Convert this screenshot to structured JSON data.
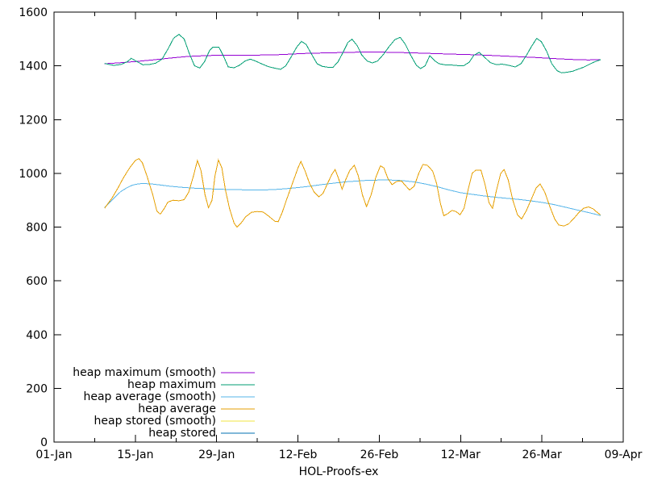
{
  "figure": {
    "background": "#ffffff",
    "foreground": "#000000"
  },
  "chart_data": {
    "type": "line",
    "title": "",
    "xlabel": "HOL-Proofs-ex",
    "ylabel": "",
    "grid": false,
    "legend_position": "inside bottom-left, text right-aligned with line sample at right",
    "ylim": [
      0,
      1600
    ],
    "y_ticks": [
      0,
      200,
      400,
      600,
      800,
      1000,
      1200,
      1400,
      1600
    ],
    "xlim_days": [
      0,
      98
    ],
    "x_tick_days": [
      0,
      14,
      28,
      42,
      56,
      70,
      84,
      98
    ],
    "x_tick_labels": [
      "01-Jan",
      "15-Jan",
      "29-Jan",
      "12-Feb",
      "26-Feb",
      "12-Mar",
      "26-Mar",
      "09-Apr"
    ],
    "x_minor_tick_days": [
      7,
      21,
      35,
      49,
      63,
      77,
      91
    ],
    "series": [
      {
        "name": "heap maximum (smooth)",
        "color": "#9400d3",
        "points": [
          [
            8.7,
            1408
          ],
          [
            11,
            1411
          ],
          [
            14,
            1416
          ],
          [
            17,
            1422
          ],
          [
            20,
            1429
          ],
          [
            23,
            1435
          ],
          [
            26,
            1438
          ],
          [
            29,
            1440
          ],
          [
            32,
            1440
          ],
          [
            35,
            1440
          ],
          [
            38,
            1441
          ],
          [
            41,
            1444
          ],
          [
            44,
            1447
          ],
          [
            47,
            1448
          ],
          [
            50,
            1450
          ],
          [
            53,
            1451
          ],
          [
            56,
            1451
          ],
          [
            59,
            1450
          ],
          [
            62,
            1448
          ],
          [
            65,
            1446
          ],
          [
            68,
            1444
          ],
          [
            71,
            1442
          ],
          [
            74,
            1440
          ],
          [
            77,
            1437
          ],
          [
            80,
            1434
          ],
          [
            83,
            1431
          ],
          [
            86,
            1427
          ],
          [
            88,
            1425
          ],
          [
            90,
            1423
          ],
          [
            92,
            1422
          ],
          [
            94.1,
            1423
          ]
        ]
      },
      {
        "name": "heap maximum",
        "color": "#009e73",
        "points": [
          [
            8.7,
            1409
          ],
          [
            9.5,
            1405
          ],
          [
            10.3,
            1402
          ],
          [
            11.5,
            1405
          ],
          [
            12.6,
            1415
          ],
          [
            13.3,
            1428
          ],
          [
            14.2,
            1417
          ],
          [
            15.3,
            1404
          ],
          [
            16.4,
            1405
          ],
          [
            17.5,
            1410
          ],
          [
            18.6,
            1425
          ],
          [
            19.6,
            1462
          ],
          [
            20.6,
            1503
          ],
          [
            21.5,
            1517
          ],
          [
            22.4,
            1500
          ],
          [
            23.3,
            1445
          ],
          [
            24.2,
            1400
          ],
          [
            25.1,
            1392
          ],
          [
            25.9,
            1415
          ],
          [
            26.8,
            1458
          ],
          [
            27.4,
            1470
          ],
          [
            28.4,
            1469
          ],
          [
            29.2,
            1435
          ],
          [
            30,
            1396
          ],
          [
            31,
            1393
          ],
          [
            31.9,
            1402
          ],
          [
            32.9,
            1418
          ],
          [
            33.8,
            1425
          ],
          [
            34.8,
            1417
          ],
          [
            35.8,
            1407
          ],
          [
            36.9,
            1397
          ],
          [
            37.9,
            1392
          ],
          [
            39,
            1387
          ],
          [
            39.9,
            1400
          ],
          [
            40.8,
            1432
          ],
          [
            41.8,
            1470
          ],
          [
            42.6,
            1491
          ],
          [
            43.4,
            1480
          ],
          [
            44.3,
            1445
          ],
          [
            45.3,
            1408
          ],
          [
            46.2,
            1398
          ],
          [
            47.1,
            1395
          ],
          [
            48,
            1394
          ],
          [
            48.9,
            1415
          ],
          [
            49.8,
            1452
          ],
          [
            50.6,
            1487
          ],
          [
            51.3,
            1499
          ],
          [
            52.2,
            1475
          ],
          [
            53,
            1440
          ],
          [
            53.9,
            1418
          ],
          [
            54.8,
            1411
          ],
          [
            55.7,
            1418
          ],
          [
            56.7,
            1442
          ],
          [
            57.7,
            1472
          ],
          [
            58.7,
            1498
          ],
          [
            59.6,
            1506
          ],
          [
            60.5,
            1480
          ],
          [
            61.4,
            1440
          ],
          [
            62.4,
            1402
          ],
          [
            63.1,
            1390
          ],
          [
            63.9,
            1400
          ],
          [
            64.7,
            1438
          ],
          [
            65.6,
            1418
          ],
          [
            66.3,
            1408
          ],
          [
            67.3,
            1404
          ],
          [
            68.4,
            1403
          ],
          [
            69.5,
            1401
          ],
          [
            70.5,
            1400
          ],
          [
            71.5,
            1414
          ],
          [
            72.3,
            1440
          ],
          [
            73.2,
            1450
          ],
          [
            74,
            1435
          ],
          [
            75.1,
            1412
          ],
          [
            76.1,
            1405
          ],
          [
            77.2,
            1406
          ],
          [
            78.3,
            1402
          ],
          [
            79.4,
            1396
          ],
          [
            80.4,
            1408
          ],
          [
            81.3,
            1438
          ],
          [
            82.2,
            1472
          ],
          [
            83.1,
            1502
          ],
          [
            83.9,
            1490
          ],
          [
            84.8,
            1455
          ],
          [
            85.7,
            1408
          ],
          [
            86.6,
            1382
          ],
          [
            87.4,
            1374
          ],
          [
            88.3,
            1376
          ],
          [
            89.3,
            1380
          ],
          [
            90.3,
            1388
          ],
          [
            91.2,
            1395
          ],
          [
            92.2,
            1406
          ],
          [
            93.1,
            1415
          ],
          [
            94.1,
            1423
          ]
        ]
      },
      {
        "name": "heap average (smooth)",
        "color": "#56b4e9",
        "points": [
          [
            8.7,
            872
          ],
          [
            9.5,
            890
          ],
          [
            10.5,
            912
          ],
          [
            11.5,
            932
          ],
          [
            12.5,
            946
          ],
          [
            13.5,
            956
          ],
          [
            14.5,
            961
          ],
          [
            15.5,
            962
          ],
          [
            17,
            960
          ],
          [
            18.5,
            956
          ],
          [
            20,
            952
          ],
          [
            22,
            948
          ],
          [
            24,
            945
          ],
          [
            26,
            943
          ],
          [
            28,
            941
          ],
          [
            30,
            940
          ],
          [
            32,
            939
          ],
          [
            34,
            938
          ],
          [
            36,
            938
          ],
          [
            38,
            940
          ],
          [
            40,
            943
          ],
          [
            42,
            947
          ],
          [
            44,
            952
          ],
          [
            46,
            958
          ],
          [
            48,
            963
          ],
          [
            50,
            968
          ],
          [
            52,
            971
          ],
          [
            54,
            974
          ],
          [
            56,
            975
          ],
          [
            58,
            975
          ],
          [
            60,
            973
          ],
          [
            62,
            968
          ],
          [
            64,
            960
          ],
          [
            66,
            950
          ],
          [
            68,
            938
          ],
          [
            70,
            928
          ],
          [
            72,
            922
          ],
          [
            74,
            916
          ],
          [
            76,
            911
          ],
          [
            78,
            907
          ],
          [
            80,
            903
          ],
          [
            82,
            898
          ],
          [
            84,
            892
          ],
          [
            86,
            884
          ],
          [
            88,
            874
          ],
          [
            90,
            864
          ],
          [
            92,
            854
          ],
          [
            93,
            849
          ],
          [
            94.1,
            843
          ]
        ]
      },
      {
        "name": "heap average",
        "color": "#e69f00",
        "points": [
          [
            8.7,
            870
          ],
          [
            9.3,
            888
          ],
          [
            10,
            908
          ],
          [
            11,
            945
          ],
          [
            12,
            985
          ],
          [
            13,
            1020
          ],
          [
            14,
            1048
          ],
          [
            14.6,
            1055
          ],
          [
            15.2,
            1040
          ],
          [
            16,
            990
          ],
          [
            17,
            920
          ],
          [
            17.7,
            860
          ],
          [
            18.3,
            848
          ],
          [
            19,
            870
          ],
          [
            19.6,
            893
          ],
          [
            20.5,
            900
          ],
          [
            21.5,
            898
          ],
          [
            22.4,
            902
          ],
          [
            23.2,
            930
          ],
          [
            24,
            990
          ],
          [
            24.7,
            1048
          ],
          [
            25.3,
            1010
          ],
          [
            26,
            920
          ],
          [
            26.6,
            872
          ],
          [
            27.2,
            900
          ],
          [
            27.7,
            990
          ],
          [
            28.3,
            1050
          ],
          [
            28.9,
            1020
          ],
          [
            29.5,
            940
          ],
          [
            30.2,
            870
          ],
          [
            31,
            815
          ],
          [
            31.5,
            800
          ],
          [
            32.2,
            815
          ],
          [
            33,
            838
          ],
          [
            34,
            855
          ],
          [
            35,
            858
          ],
          [
            36,
            856
          ],
          [
            37,
            840
          ],
          [
            38,
            822
          ],
          [
            38.6,
            820
          ],
          [
            39.3,
            855
          ],
          [
            40,
            900
          ],
          [
            41,
            960
          ],
          [
            42,
            1020
          ],
          [
            42.5,
            1044
          ],
          [
            43.2,
            1010
          ],
          [
            44,
            962
          ],
          [
            44.8,
            930
          ],
          [
            45.6,
            913
          ],
          [
            46.3,
            925
          ],
          [
            47,
            958
          ],
          [
            47.8,
            995
          ],
          [
            48.4,
            1014
          ],
          [
            49,
            980
          ],
          [
            49.6,
            941
          ],
          [
            50.2,
            975
          ],
          [
            50.9,
            1010
          ],
          [
            51.7,
            1030
          ],
          [
            52.4,
            990
          ],
          [
            53.1,
            920
          ],
          [
            53.8,
            876
          ],
          [
            54.6,
            920
          ],
          [
            55.4,
            985
          ],
          [
            56.2,
            1028
          ],
          [
            56.8,
            1020
          ],
          [
            57.5,
            980
          ],
          [
            58.2,
            958
          ],
          [
            59,
            970
          ],
          [
            59.8,
            972
          ],
          [
            60.5,
            955
          ],
          [
            61.2,
            938
          ],
          [
            62,
            952
          ],
          [
            62.8,
            1000
          ],
          [
            63.5,
            1033
          ],
          [
            64.3,
            1030
          ],
          [
            65.2,
            1008
          ],
          [
            65.9,
            960
          ],
          [
            66.5,
            890
          ],
          [
            67.1,
            842
          ],
          [
            67.8,
            850
          ],
          [
            68.5,
            862
          ],
          [
            69.2,
            858
          ],
          [
            69.9,
            846
          ],
          [
            70.6,
            870
          ],
          [
            71.3,
            940
          ],
          [
            72,
            1000
          ],
          [
            72.6,
            1012
          ],
          [
            73.5,
            1012
          ],
          [
            74.2,
            960
          ],
          [
            74.9,
            890
          ],
          [
            75.5,
            870
          ],
          [
            76.2,
            940
          ],
          [
            76.9,
            1000
          ],
          [
            77.5,
            1014
          ],
          [
            78.2,
            975
          ],
          [
            79,
            900
          ],
          [
            79.8,
            845
          ],
          [
            80.5,
            830
          ],
          [
            81.3,
            860
          ],
          [
            82.2,
            905
          ],
          [
            83,
            945
          ],
          [
            83.7,
            960
          ],
          [
            84.5,
            930
          ],
          [
            85.3,
            880
          ],
          [
            86.2,
            830
          ],
          [
            86.9,
            808
          ],
          [
            87.8,
            804
          ],
          [
            88.6,
            812
          ],
          [
            89.5,
            832
          ],
          [
            90.4,
            855
          ],
          [
            91.2,
            870
          ],
          [
            92,
            875
          ],
          [
            92.8,
            868
          ],
          [
            93.5,
            855
          ],
          [
            94.1,
            845
          ]
        ]
      },
      {
        "name": "heap stored (smooth)",
        "color": "#f0e442",
        "points": []
      },
      {
        "name": "heap stored",
        "color": "#0072b2",
        "points": []
      }
    ]
  }
}
